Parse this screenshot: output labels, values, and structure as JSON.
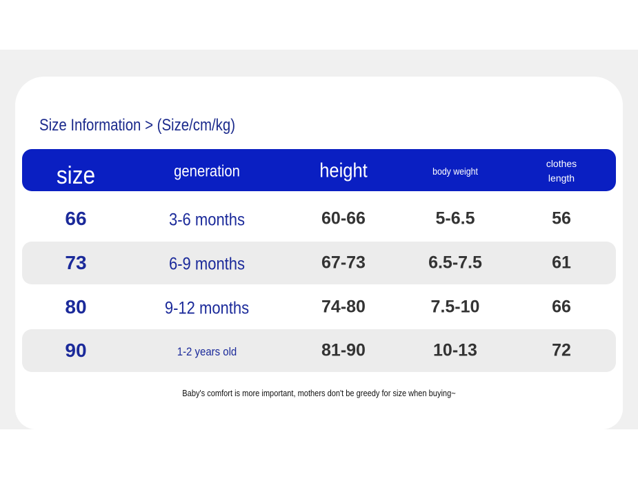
{
  "title": "Size Information > (Size/cm/kg)",
  "table": {
    "headers": [
      "size",
      "generation",
      "height",
      "body weight",
      "clothes length"
    ],
    "rows": [
      [
        "66",
        "3-6 months",
        "60-66",
        "5-6.5",
        "56"
      ],
      [
        "73",
        "6-9 months",
        "67-73",
        "6.5-7.5",
        "61"
      ],
      [
        "80",
        "9-12 months",
        "74-80",
        "7.5-10",
        "66"
      ],
      [
        "90",
        "1-2 years old",
        "81-90",
        "10-13",
        "72"
      ]
    ]
  },
  "note": "Baby's comfort is more important, mothers don't be greedy for size when buying~"
}
